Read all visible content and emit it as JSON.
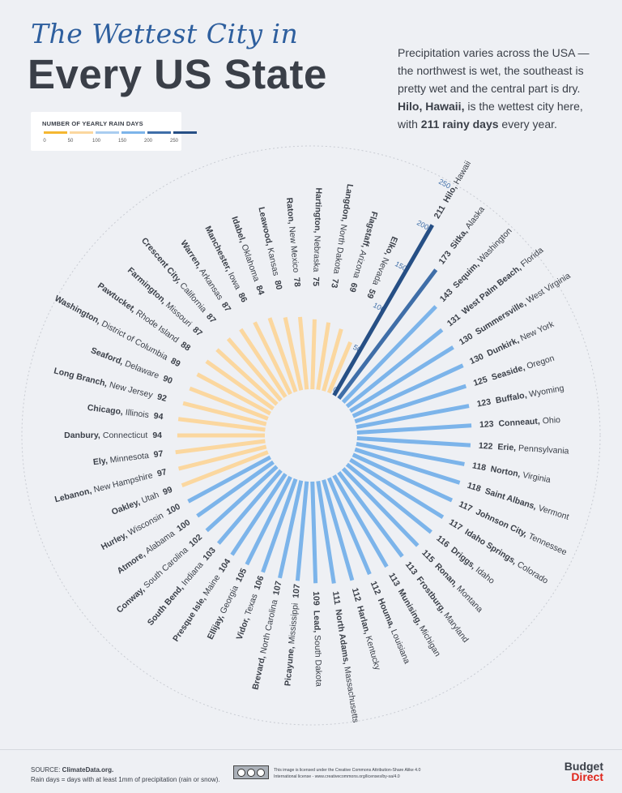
{
  "header": {
    "title_script": "The Wettest City in",
    "title_main": "Every US State",
    "intro_1": "Precipitation varies across the USA — the northwest is wet, the southeast is pretty wet and the central part is dry.",
    "intro_2_bold": "Hilo, Hawaii,",
    "intro_3": " is the wettest city here, with ",
    "intro_4_bold": "211 rainy days",
    "intro_5": " every year."
  },
  "legend": {
    "title": "NUMBER OF YEARLY RAIN DAYS",
    "ticks": [
      "0",
      "50",
      "100",
      "150",
      "200",
      "250"
    ],
    "colors": [
      "#f5b731",
      "#fbd79f",
      "#a9cdf0",
      "#7cb4ea",
      "#3f6ea8",
      "#264f85"
    ]
  },
  "chart_data": {
    "type": "bar",
    "layout": "radial",
    "title": "The Wettest City in Every US State",
    "scale_labels": [
      "0",
      "50",
      "100",
      "150",
      "200",
      "250"
    ],
    "ylim": [
      0,
      250
    ],
    "colors": {
      "50-100": "#fbd79f",
      "100-150": "#7cb4ea",
      "150-200": "#3f6ea8",
      "200-250": "#264f85"
    },
    "items": [
      {
        "value": 211,
        "city": "Hilo,",
        "state": "Hawaii"
      },
      {
        "value": 173,
        "city": "Sitka,",
        "state": "Alaska"
      },
      {
        "value": 143,
        "city": "Sequim,",
        "state": "Washington"
      },
      {
        "value": 131,
        "city": "West Palm Beach,",
        "state": "Florida"
      },
      {
        "value": 130,
        "city": "Summersville,",
        "state": "West Virginia"
      },
      {
        "value": 130,
        "city": "Dunkirk,",
        "state": "New York"
      },
      {
        "value": 125,
        "city": "Seaside,",
        "state": "Oregon"
      },
      {
        "value": 123,
        "city": "Buffalo,",
        "state": "Wyoming"
      },
      {
        "value": 123,
        "city": "Conneaut,",
        "state": "Ohio"
      },
      {
        "value": 122,
        "city": "Erie,",
        "state": "Pennsylvania"
      },
      {
        "value": 118,
        "city": "Norton,",
        "state": "Virginia"
      },
      {
        "value": 118,
        "city": "Saint Albans,",
        "state": "Vermont"
      },
      {
        "value": 117,
        "city": "Johnson City,",
        "state": "Tennessee"
      },
      {
        "value": 117,
        "city": "Idaho Springs,",
        "state": "Colorado"
      },
      {
        "value": 116,
        "city": "Driggs,",
        "state": "Idaho"
      },
      {
        "value": 115,
        "city": "Ronan,",
        "state": "Montana"
      },
      {
        "value": 113,
        "city": "Frostburg,",
        "state": "Maryland"
      },
      {
        "value": 113,
        "city": "Munising,",
        "state": "Michigan"
      },
      {
        "value": 112,
        "city": "Houma,",
        "state": "Louisiana"
      },
      {
        "value": 112,
        "city": "Harlan,",
        "state": "Kentucky"
      },
      {
        "value": 111,
        "city": "North Adams,",
        "state": "Massachusetts"
      },
      {
        "value": 109,
        "city": "Lead,",
        "state": "South Dakota"
      },
      {
        "value": 107,
        "city": "Picayune,",
        "state": "Mississippi"
      },
      {
        "value": 107,
        "city": "Brevard,",
        "state": "North Carolina"
      },
      {
        "value": 106,
        "city": "Vidor,",
        "state": "Texas"
      },
      {
        "value": 105,
        "city": "Ellijay,",
        "state": "Georgia"
      },
      {
        "value": 104,
        "city": "Presque Isle,",
        "state": "Maine"
      },
      {
        "value": 103,
        "city": "South Bend,",
        "state": "Indiana"
      },
      {
        "value": 102,
        "city": "Conway,",
        "state": "South Carolina"
      },
      {
        "value": 100,
        "city": "Atmore,",
        "state": "Alabama"
      },
      {
        "value": 100,
        "city": "Hurley,",
        "state": "Wisconsin"
      },
      {
        "value": 99,
        "city": "Oakley,",
        "state": "Utah"
      },
      {
        "value": 97,
        "city": "Lebanon,",
        "state": "New Hampshire"
      },
      {
        "value": 97,
        "city": "Ely,",
        "state": "Minnesota"
      },
      {
        "value": 94,
        "city": "Danbury,",
        "state": "Connecticut"
      },
      {
        "value": 94,
        "city": "Chicago,",
        "state": "Illinois"
      },
      {
        "value": 92,
        "city": "Long Branch,",
        "state": "New Jersey"
      },
      {
        "value": 90,
        "city": "Seaford,",
        "state": "Delaware"
      },
      {
        "value": 89,
        "city": "Washington,",
        "state": "District of Columbia"
      },
      {
        "value": 88,
        "city": "Pawtucket,",
        "state": "Rhode Island"
      },
      {
        "value": 87,
        "city": "Farmington,",
        "state": "Missouri"
      },
      {
        "value": 87,
        "city": "Crescent City,",
        "state": "California"
      },
      {
        "value": 87,
        "city": "Warren,",
        "state": "Arkansas"
      },
      {
        "value": 86,
        "city": "Manchester,",
        "state": "Iowa"
      },
      {
        "value": 84,
        "city": "Idabel,",
        "state": "Oklahoma"
      },
      {
        "value": 80,
        "city": "Leawood,",
        "state": "Kansas"
      },
      {
        "value": 78,
        "city": "Raton,",
        "state": "New Mexico"
      },
      {
        "value": 75,
        "city": "Hartington,",
        "state": "Nebraska"
      },
      {
        "value": 73,
        "city": "Langdon,",
        "state": "North Dakota"
      },
      {
        "value": 69,
        "city": "Flagstaff,",
        "state": "Arizona"
      },
      {
        "value": 59,
        "city": "Elko,",
        "state": "Nevada"
      }
    ]
  },
  "footer": {
    "source_label": "SOURCE: ",
    "source_name": "ClimateData.org.",
    "note": "Rain days = days with at least 1mm of precipitation (rain or snow).",
    "license_1": "This image is licensed under the Creative Commons Attribution-Share Alike 4.0",
    "license_2": "International license - www.creativecommons.org/licenses/by-sa/4.0",
    "brand_1": "Budget",
    "brand_2": "Direct"
  }
}
